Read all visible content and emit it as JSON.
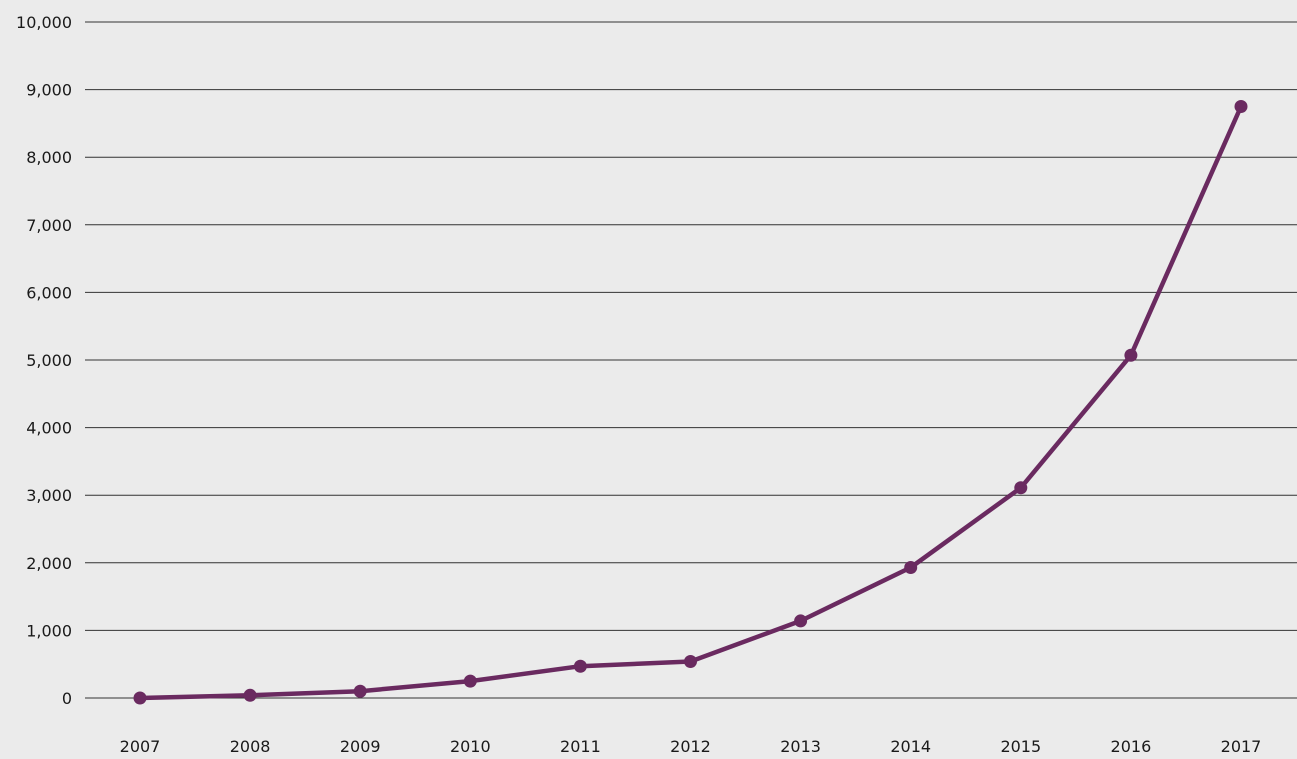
{
  "chart_data": {
    "type": "line",
    "title": "",
    "xlabel": "",
    "ylabel": "",
    "categories": [
      "2007",
      "2008",
      "2009",
      "2010",
      "2011",
      "2012",
      "2013",
      "2014",
      "2015",
      "2016",
      "2017"
    ],
    "series": [
      {
        "values": [
          0,
          40,
          100,
          250,
          470,
          540,
          1140,
          1930,
          3110,
          5070,
          8750
        ],
        "color": "#6a2a60"
      }
    ],
    "ylim": [
      0,
      10000
    ],
    "yticks": [
      0,
      1000,
      2000,
      3000,
      4000,
      5000,
      6000,
      7000,
      8000,
      9000,
      10000
    ],
    "ytick_labels": [
      "0",
      "1,000",
      "2,000",
      "3,000",
      "4,000",
      "5,000",
      "6,000",
      "7,000",
      "8,000",
      "9,000",
      "10,000"
    ],
    "grid": true,
    "legend": "none",
    "markers": true
  }
}
